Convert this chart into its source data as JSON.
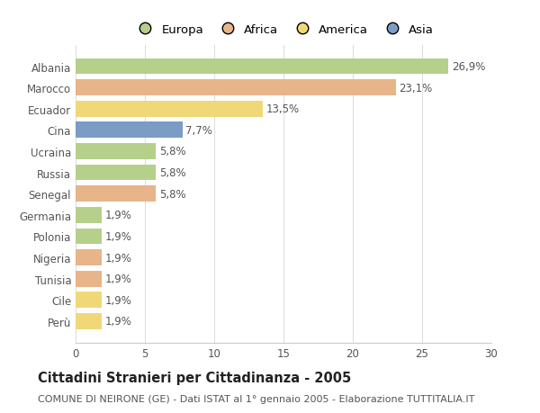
{
  "categories": [
    "Albania",
    "Marocco",
    "Ecuador",
    "Cina",
    "Ucraina",
    "Russia",
    "Senegal",
    "Germania",
    "Polonia",
    "Nigeria",
    "Tunisia",
    "Cile",
    "Perù"
  ],
  "values": [
    26.9,
    23.1,
    13.5,
    7.7,
    5.8,
    5.8,
    5.8,
    1.9,
    1.9,
    1.9,
    1.9,
    1.9,
    1.9
  ],
  "labels": [
    "26,9%",
    "23,1%",
    "13,5%",
    "7,7%",
    "5,8%",
    "5,8%",
    "5,8%",
    "1,9%",
    "1,9%",
    "1,9%",
    "1,9%",
    "1,9%",
    "1,9%"
  ],
  "colors": [
    "#b5d08a",
    "#e8b48a",
    "#f0d878",
    "#7b9cc4",
    "#b5d08a",
    "#b5d08a",
    "#e8b48a",
    "#b5d08a",
    "#b5d08a",
    "#e8b48a",
    "#e8b48a",
    "#f0d878",
    "#f0d878"
  ],
  "legend": {
    "Europa": "#b5d08a",
    "Africa": "#e8b48a",
    "America": "#f0d878",
    "Asia": "#7b9cc4"
  },
  "title": "Cittadini Stranieri per Cittadinanza - 2005",
  "subtitle": "COMUNE DI NEIRONE (GE) - Dati ISTAT al 1° gennaio 2005 - Elaborazione TUTTITALIA.IT",
  "xlim": [
    0,
    30
  ],
  "xticks": [
    0,
    5,
    10,
    15,
    20,
    25,
    30
  ],
  "background_color": "#ffffff",
  "plot_bg_color": "#ffffff",
  "bar_height": 0.75,
  "label_fontsize": 8.5,
  "title_fontsize": 10.5,
  "subtitle_fontsize": 8,
  "tick_fontsize": 8.5,
  "legend_fontsize": 9.5
}
